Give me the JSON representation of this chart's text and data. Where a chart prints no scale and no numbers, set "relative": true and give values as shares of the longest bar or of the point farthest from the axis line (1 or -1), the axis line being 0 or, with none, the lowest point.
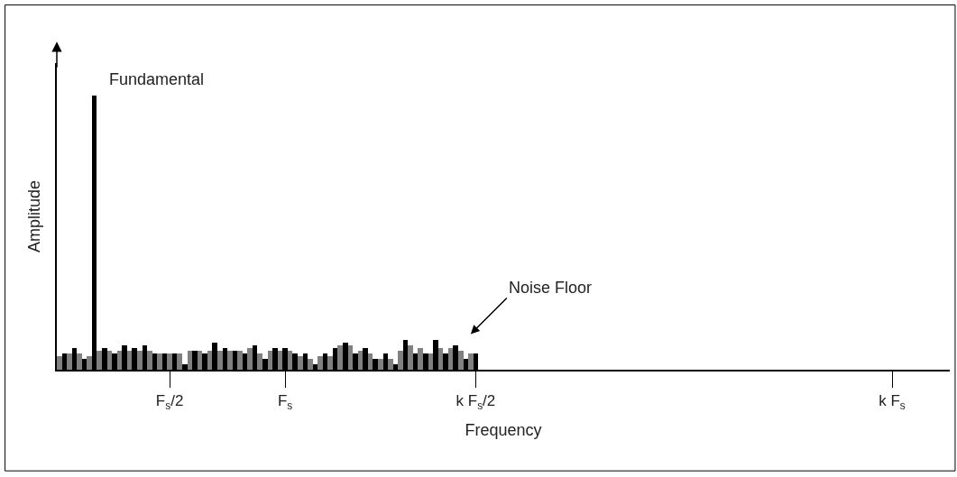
{
  "chart_data": {
    "type": "bar",
    "relative": true,
    "xlabel": "Frequency",
    "ylabel": "Amplitude",
    "categories": [
      null,
      null,
      null,
      null,
      null,
      null,
      null,
      null,
      null,
      null,
      null,
      null,
      null,
      null,
      null,
      null,
      null,
      null,
      null,
      null,
      null,
      null,
      "F$_{s}$/2",
      null,
      null,
      null,
      null,
      null,
      null,
      null,
      null,
      null,
      null,
      null,
      null,
      null,
      null,
      null,
      null,
      null,
      null,
      null,
      null,
      null,
      null,
      "F$_{s}$",
      null,
      null,
      null,
      null,
      null,
      null,
      null,
      null,
      null,
      null,
      null,
      null,
      null,
      null,
      null,
      null,
      null,
      null,
      null,
      null,
      null,
      null,
      null,
      null,
      null,
      null,
      null,
      null,
      null,
      null,
      null,
      null,
      null,
      null,
      null,
      null,
      null,
      "k F$_{s}$/2",
      null,
      null,
      null,
      null,
      null,
      null,
      null,
      null,
      null,
      null,
      null,
      null,
      null,
      null,
      null,
      null,
      null,
      null,
      null,
      null,
      null,
      null,
      null,
      null,
      null,
      null,
      null,
      null,
      null,
      null,
      null,
      null,
      null,
      null,
      null,
      null,
      null,
      null,
      null,
      null,
      null,
      null,
      null,
      null,
      null,
      null,
      null,
      null,
      null,
      null,
      null,
      null,
      null,
      null,
      null,
      null,
      null,
      null,
      null,
      null,
      null,
      null,
      null,
      null,
      null,
      null,
      null,
      null,
      null,
      null,
      null,
      null,
      null,
      null,
      null,
      null,
      null,
      null,
      null,
      null,
      null,
      null,
      "k F$_{s}$",
      null,
      null,
      null,
      null,
      null,
      null,
      null,
      null,
      null,
      null,
      null
    ],
    "values": [
      0.05,
      0.06,
      0.06,
      0.08,
      0.06,
      0.04,
      0.05,
      1,
      0.07,
      0.08,
      0.07,
      0.06,
      0.07,
      0.09,
      0.07,
      0.08,
      0.07,
      0.09,
      0.07,
      0.06,
      0.06,
      0.06,
      0.06,
      0.06,
      0.06,
      0.02,
      0.07,
      0.07,
      0.07,
      0.06,
      0.07,
      0.1,
      0.07,
      0.08,
      0.07,
      0.07,
      0.07,
      0.06,
      0.08,
      0.09,
      0.06,
      0.04,
      0.07,
      0.08,
      0.07,
      0.08,
      0.07,
      0.06,
      0.05,
      0.06,
      0.04,
      0.02,
      0.05,
      0.06,
      0.05,
      0.08,
      0.09,
      0.1,
      0.09,
      0.06,
      0.07,
      0.08,
      0.06,
      0.04,
      0.04,
      0.06,
      0.04,
      0.02,
      0.07,
      0.11,
      0.09,
      0.06,
      0.08,
      0.06,
      0.06,
      0.11,
      0.08,
      0.06,
      0.08,
      0.09,
      0.07,
      0.04,
      0.06,
      0.06,
      null,
      null,
      null,
      null,
      null,
      null,
      null,
      null,
      null,
      null,
      null,
      null,
      null,
      null,
      null,
      null,
      null,
      null,
      null,
      null,
      null,
      null,
      null,
      null,
      null,
      null,
      null,
      null,
      null,
      null,
      null,
      null,
      null,
      null,
      null,
      null,
      null,
      null,
      null,
      null,
      null,
      null,
      null,
      null,
      null,
      null,
      null,
      null,
      null,
      null,
      null,
      null,
      null,
      null,
      null,
      null,
      null,
      null,
      null,
      null,
      null,
      null,
      null,
      null,
      null,
      null,
      null,
      null,
      null,
      null,
      null,
      null,
      null,
      null,
      null,
      null,
      null,
      null,
      null,
      null,
      null,
      null,
      null,
      null,
      null,
      null,
      null,
      null,
      null,
      null,
      null,
      null,
      null,
      null
    ],
    "colors": [
      "#808080",
      "#000000",
      "#808080",
      "#000000",
      "#808080",
      "#000000",
      "#808080",
      "#000000",
      "#808080",
      "#000000",
      "#808080",
      "#000000",
      "#808080",
      "#000000",
      "#808080",
      "#000000",
      "#808080",
      "#000000",
      "#808080",
      "#000000",
      "#808080",
      "#000000",
      "#808080",
      "#000000",
      "#808080",
      "#000000",
      "#808080",
      "#000000",
      "#808080",
      "#000000",
      "#808080",
      "#000000",
      "#808080",
      "#000000",
      "#808080",
      "#000000",
      "#808080",
      "#000000",
      "#808080",
      "#000000",
      "#808080",
      "#000000",
      "#808080",
      "#000000",
      "#808080",
      "#000000",
      "#808080",
      "#000000",
      "#808080",
      "#000000",
      "#808080",
      "#000000",
      "#808080",
      "#000000",
      "#808080",
      "#000000",
      "#808080",
      "#000000",
      "#808080",
      "#000000",
      "#808080",
      "#000000",
      "#808080",
      "#000000",
      "#808080",
      "#000000",
      "#808080",
      "#000000",
      "#808080",
      "#000000",
      "#808080",
      "#000000",
      "#808080",
      "#000000",
      "#808080",
      "#000000",
      "#808080",
      "#000000",
      "#808080",
      "#000000",
      "#808080",
      "#000000",
      "#808080",
      "#000000",
      null,
      null,
      null,
      null,
      null,
      null,
      null,
      null,
      null,
      null,
      null,
      null,
      null,
      null,
      null,
      null,
      null,
      null,
      null,
      null,
      null,
      null,
      null,
      null,
      null,
      null,
      null,
      null,
      null,
      null,
      null,
      null,
      null,
      null,
      null,
      null,
      null,
      null,
      null,
      null,
      null,
      null,
      null,
      null,
      null,
      null,
      null,
      null,
      null,
      null,
      null,
      null,
      null,
      null,
      null,
      null,
      null,
      null,
      null,
      null,
      null,
      null,
      null,
      null,
      null,
      null,
      null,
      null,
      null,
      null,
      null,
      null,
      null,
      null,
      null,
      null,
      null,
      null,
      null,
      null,
      null,
      null,
      null,
      null,
      null,
      null,
      null,
      null,
      null,
      null,
      null,
      null,
      null,
      null
    ],
    "annotations": [
      "Fundamental",
      "Noise Floor"
    ],
    "legend": false
  }
}
